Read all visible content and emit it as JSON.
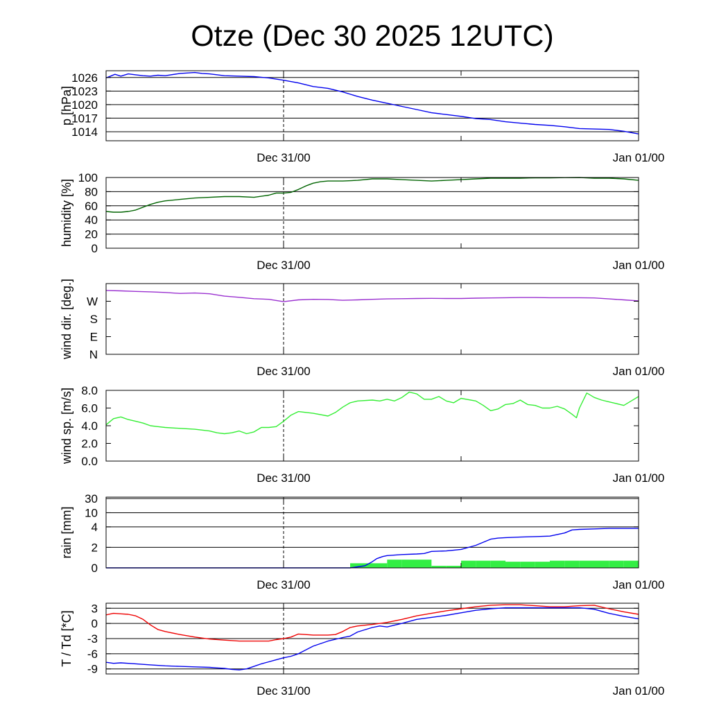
{
  "title": "Otze (Dec 30 2025 12UTC)",
  "colors": {
    "pressure": "#0000ee",
    "humidity": "#006400",
    "wind_dir": "#9a30d0",
    "wind_speed": "#33ee33",
    "rain_accum": "#0000ee",
    "rain_bars": "#33ee44",
    "temperature": "#ee0000",
    "dewpoint": "#0000ee"
  },
  "chart_data": [
    {
      "id": "pressure",
      "type": "line",
      "ylabel": "p [hPa]",
      "ylim": [
        1012,
        1027.5
      ],
      "yticks": [
        1014,
        1017,
        1020,
        1023,
        1026
      ],
      "ytick_labels": [
        "1014",
        "1017",
        "1020",
        "1023",
        "1026"
      ],
      "hgrid": [
        1014,
        1017,
        1020,
        1023,
        1026
      ],
      "xlim": [
        0,
        36
      ],
      "x_ticks": [
        12,
        24
      ],
      "x_tick_labels": [
        "Dec 31/00",
        "Jan 01/00"
      ],
      "x_tick_label_pos": [
        12,
        36
      ],
      "vline": 12,
      "series": [
        {
          "name": "p",
          "color": "pressure",
          "x": [
            0,
            0.3,
            0.6,
            1,
            1.5,
            2,
            2.5,
            3,
            3.5,
            4,
            5,
            6,
            6.5,
            7,
            8,
            9,
            10,
            11,
            12,
            13,
            14,
            15,
            16,
            17,
            18,
            19,
            20,
            21,
            22,
            23,
            24,
            25,
            26,
            27,
            28,
            29,
            30,
            31,
            32,
            33,
            34,
            35,
            36
          ],
          "y": [
            1025.9,
            1026.3,
            1026.7,
            1026.3,
            1026.8,
            1026.6,
            1026.4,
            1026.3,
            1026.5,
            1026.4,
            1026.9,
            1027.1,
            1026.9,
            1026.8,
            1026.4,
            1026.3,
            1026.2,
            1025.9,
            1025.4,
            1024.8,
            1024.0,
            1023.6,
            1022.8,
            1021.8,
            1021.0,
            1020.3,
            1019.6,
            1018.9,
            1018.2,
            1017.8,
            1017.4,
            1016.9,
            1016.7,
            1016.2,
            1015.9,
            1015.6,
            1015.4,
            1015.1,
            1014.7,
            1014.6,
            1014.5,
            1014.1,
            1013.5
          ]
        }
      ]
    },
    {
      "id": "humidity",
      "type": "line",
      "ylabel": "humidity [%]",
      "ylim": [
        0,
        100
      ],
      "yticks": [
        0,
        20,
        40,
        60,
        80,
        100
      ],
      "ytick_labels": [
        "0",
        "20",
        "40",
        "60",
        "80",
        "100"
      ],
      "hgrid": [
        20,
        40,
        60,
        80,
        100
      ],
      "xlim": [
        0,
        36
      ],
      "x_ticks": [
        12,
        24
      ],
      "x_tick_labels": [
        "Dec 31/00",
        "Jan 01/00"
      ],
      "x_tick_label_pos": [
        12,
        36
      ],
      "vline": 12,
      "series": [
        {
          "name": "rh",
          "color": "humidity",
          "x": [
            0,
            0.5,
            1,
            1.5,
            2,
            2.5,
            3,
            3.5,
            4,
            5,
            6,
            7,
            8,
            9,
            10,
            11,
            11.5,
            12,
            12.5,
            13,
            13.5,
            14,
            14.5,
            15,
            16,
            17,
            18,
            19,
            20,
            21,
            22,
            23,
            24,
            25,
            26,
            27,
            28,
            29,
            30,
            31,
            32,
            33,
            34,
            35,
            36
          ],
          "y": [
            52,
            51,
            51,
            52,
            54,
            58,
            62,
            65,
            67,
            69,
            71,
            72,
            73,
            73,
            72,
            75,
            78,
            78,
            79,
            83,
            88,
            92,
            94,
            95,
            95,
            96,
            98,
            98,
            97,
            96,
            95,
            96,
            97,
            98,
            99,
            99,
            99,
            99.5,
            99.5,
            99.8,
            100,
            99,
            99,
            98,
            96
          ]
        }
      ]
    },
    {
      "id": "wind_dir",
      "type": "line",
      "ylabel": "wind dir. [deg.]",
      "ylim": [
        0,
        360
      ],
      "yticks": [
        0,
        90,
        180,
        270
      ],
      "ytick_labels": [
        "N",
        "E",
        "S",
        "W"
      ],
      "hgrid": [],
      "xlim": [
        0,
        36
      ],
      "x_ticks": [
        12,
        24
      ],
      "x_tick_labels": [
        "Dec 31/00",
        "Jan 01/00"
      ],
      "x_tick_label_pos": [
        12,
        36
      ],
      "vline": 12,
      "series": [
        {
          "name": "dir",
          "color": "wind_dir",
          "x": [
            0,
            1,
            2,
            3,
            4,
            5,
            6,
            7,
            8,
            9,
            10,
            11,
            12,
            13,
            14,
            15,
            16,
            17,
            18,
            19,
            20,
            21,
            22,
            23,
            24,
            25,
            26,
            27,
            28,
            29,
            30,
            31,
            32,
            33,
            34,
            35,
            36
          ],
          "y": [
            325,
            323,
            320,
            318,
            315,
            310,
            312,
            308,
            296,
            290,
            283,
            280,
            268,
            277,
            280,
            279,
            275,
            277,
            280,
            282,
            283,
            284,
            285,
            284,
            284,
            286,
            287,
            288,
            289,
            289,
            288,
            288,
            288,
            287,
            282,
            277,
            272
          ]
        }
      ]
    },
    {
      "id": "wind_speed",
      "type": "line",
      "ylabel": "wind sp. [m/s]",
      "ylim": [
        0,
        8
      ],
      "yticks": [
        0,
        2,
        4,
        6,
        8
      ],
      "ytick_labels": [
        "0.0",
        "2.0",
        "4.0",
        "6.0",
        "8.0"
      ],
      "hgrid": [],
      "xlim": [
        0,
        36
      ],
      "x_ticks": [
        12,
        24
      ],
      "x_tick_labels": [
        "Dec 31/00",
        "Jan 01/00"
      ],
      "x_tick_label_pos": [
        12,
        36
      ],
      "vline": 12,
      "series": [
        {
          "name": "ws",
          "color": "wind_speed",
          "x": [
            0,
            0.5,
            1,
            1.5,
            2,
            2.5,
            3,
            3.5,
            4,
            5,
            6,
            7,
            7.5,
            8,
            8.5,
            9,
            9.5,
            10,
            10.5,
            11,
            11.5,
            12,
            12.5,
            13,
            14,
            15,
            15.5,
            16,
            16.5,
            17,
            18,
            18.5,
            19,
            19.5,
            20,
            20.5,
            21,
            21.5,
            22,
            22.5,
            23,
            23.5,
            24,
            25,
            25.5,
            26,
            26.5,
            27,
            27.5,
            28,
            28.5,
            29,
            29.5,
            30,
            30.5,
            31,
            31.5,
            31.8,
            32,
            32.5,
            33,
            33.5,
            34,
            34.5,
            35,
            35.5,
            36
          ],
          "y": [
            4.1,
            4.8,
            5.0,
            4.7,
            4.5,
            4.3,
            4.0,
            3.9,
            3.8,
            3.7,
            3.6,
            3.4,
            3.2,
            3.1,
            3.2,
            3.4,
            3.1,
            3.3,
            3.8,
            3.8,
            3.9,
            4.5,
            5.2,
            5.6,
            5.4,
            5.1,
            5.5,
            6.1,
            6.6,
            6.8,
            6.9,
            6.8,
            7.0,
            6.8,
            7.2,
            7.8,
            7.6,
            7.0,
            7.0,
            7.3,
            6.8,
            6.6,
            7.1,
            6.8,
            6.3,
            5.7,
            5.9,
            6.4,
            6.5,
            6.9,
            6.4,
            6.3,
            6.0,
            6.0,
            6.2,
            5.9,
            5.3,
            4.9,
            6.0,
            7.7,
            7.2,
            6.9,
            6.7,
            6.5,
            6.3,
            6.8,
            7.3
          ]
        }
      ]
    },
    {
      "id": "rain",
      "type": "bar+line",
      "ylabel": "rain [mm]",
      "ylim_note": "non-linear axis",
      "yticks": [
        0,
        2,
        4,
        10,
        30
      ],
      "ytick_labels": [
        "0",
        "2",
        "4",
        "10",
        "30"
      ],
      "hgrid": [
        2,
        4,
        10,
        30
      ],
      "xlim": [
        0,
        36
      ],
      "x_ticks": [
        12,
        24
      ],
      "x_tick_labels": [
        "Dec 31/00",
        "Jan 01/00"
      ],
      "x_tick_label_pos": [
        12,
        36
      ],
      "vline": 12,
      "bars": {
        "color": "rain_bars",
        "x0": [
          16.5,
          18,
          19,
          20,
          21,
          22,
          23,
          24,
          25,
          26,
          27,
          28,
          29,
          30,
          31,
          32,
          33,
          34,
          35
        ],
        "x1": [
          18,
          19,
          20,
          21,
          22,
          23,
          24,
          25,
          26,
          27,
          28,
          29,
          30,
          31,
          32,
          33,
          34,
          35,
          36
        ],
        "values": [
          0.45,
          0.45,
          0.8,
          0.8,
          0.8,
          0.2,
          0.2,
          0.7,
          0.7,
          0.7,
          0.6,
          0.6,
          0.6,
          0.7,
          0.7,
          0.7,
          0.7,
          0.7,
          0.7
        ]
      },
      "series": [
        {
          "name": "accum",
          "color": "rain_accum",
          "x": [
            0,
            16.5,
            17,
            17.5,
            18,
            18.3,
            18.7,
            19,
            20,
            21,
            21.5,
            22,
            23,
            24,
            25,
            26,
            26.5,
            27,
            28,
            29,
            30,
            31,
            31.5,
            32,
            33,
            34,
            35,
            36
          ],
          "y": [
            0,
            0,
            0.1,
            0.2,
            0.6,
            0.9,
            1.1,
            1.2,
            1.3,
            1.35,
            1.4,
            1.6,
            1.65,
            1.8,
            2.2,
            2.8,
            2.9,
            2.95,
            3.0,
            3.05,
            3.1,
            3.4,
            3.7,
            3.75,
            3.8,
            3.85,
            3.85,
            3.85
          ]
        }
      ]
    },
    {
      "id": "temperature",
      "type": "line",
      "ylabel": "T / Td [*C]",
      "ylim": [
        -10,
        4
      ],
      "yticks": [
        -9,
        -6,
        -3,
        0,
        3
      ],
      "ytick_labels": [
        "-9",
        "-6",
        "-3",
        "0",
        "3"
      ],
      "hgrid": [
        -9,
        -6,
        -3,
        0,
        3
      ],
      "xlim": [
        0,
        36
      ],
      "x_ticks": [
        12,
        24
      ],
      "x_tick_labels": [
        "Dec 31/00",
        "Jan 01/00"
      ],
      "x_tick_label_pos": [
        12,
        36
      ],
      "vline": 12,
      "series": [
        {
          "name": "T",
          "color": "temperature",
          "x": [
            0,
            0.5,
            1,
            1.5,
            2,
            2.5,
            3,
            3.5,
            4,
            5,
            6,
            7,
            8,
            9,
            10,
            11,
            11.5,
            12,
            12.5,
            13,
            14,
            15,
            15.5,
            16,
            16.5,
            17,
            18,
            19,
            20,
            21,
            22,
            23,
            24,
            25,
            26,
            27,
            28,
            29,
            30,
            31,
            32,
            33,
            34,
            35,
            36
          ],
          "y": [
            1.7,
            2.0,
            1.9,
            1.8,
            1.5,
            0.8,
            -0.3,
            -1.2,
            -1.6,
            -2.2,
            -2.7,
            -3.1,
            -3.3,
            -3.5,
            -3.5,
            -3.5,
            -3.2,
            -3.0,
            -2.7,
            -2.1,
            -2.3,
            -2.3,
            -2.2,
            -1.6,
            -0.8,
            -0.5,
            -0.2,
            0.2,
            0.8,
            1.5,
            2.0,
            2.5,
            2.9,
            3.3,
            3.6,
            3.7,
            3.7,
            3.5,
            3.3,
            3.3,
            3.5,
            3.6,
            2.9,
            2.3,
            1.8
          ]
        },
        {
          "name": "Td",
          "color": "dewpoint",
          "x": [
            0,
            0.5,
            1,
            1.5,
            2,
            3,
            4,
            5,
            6,
            7,
            7.5,
            8,
            8.5,
            9,
            9.5,
            10,
            10.5,
            11,
            11.5,
            12,
            12.5,
            13,
            14,
            15,
            16,
            16.5,
            17,
            18,
            18.5,
            19,
            20,
            21,
            22,
            23,
            24,
            25,
            26,
            27,
            28,
            29,
            30,
            31,
            32,
            33,
            34,
            35,
            36
          ],
          "y": [
            -7.7,
            -7.9,
            -7.8,
            -7.9,
            -8.0,
            -8.2,
            -8.4,
            -8.5,
            -8.6,
            -8.7,
            -8.8,
            -8.9,
            -9.1,
            -9.2,
            -9.0,
            -8.5,
            -8.0,
            -7.6,
            -7.2,
            -6.8,
            -6.5,
            -6.0,
            -4.5,
            -3.5,
            -2.8,
            -2.5,
            -1.7,
            -0.8,
            -0.5,
            -0.7,
            0,
            0.8,
            1.2,
            1.6,
            2.1,
            2.6,
            2.9,
            3.1,
            3.1,
            3.1,
            3.1,
            3.1,
            3.1,
            2.8,
            2.0,
            1.4,
            0.9
          ]
        }
      ]
    }
  ]
}
